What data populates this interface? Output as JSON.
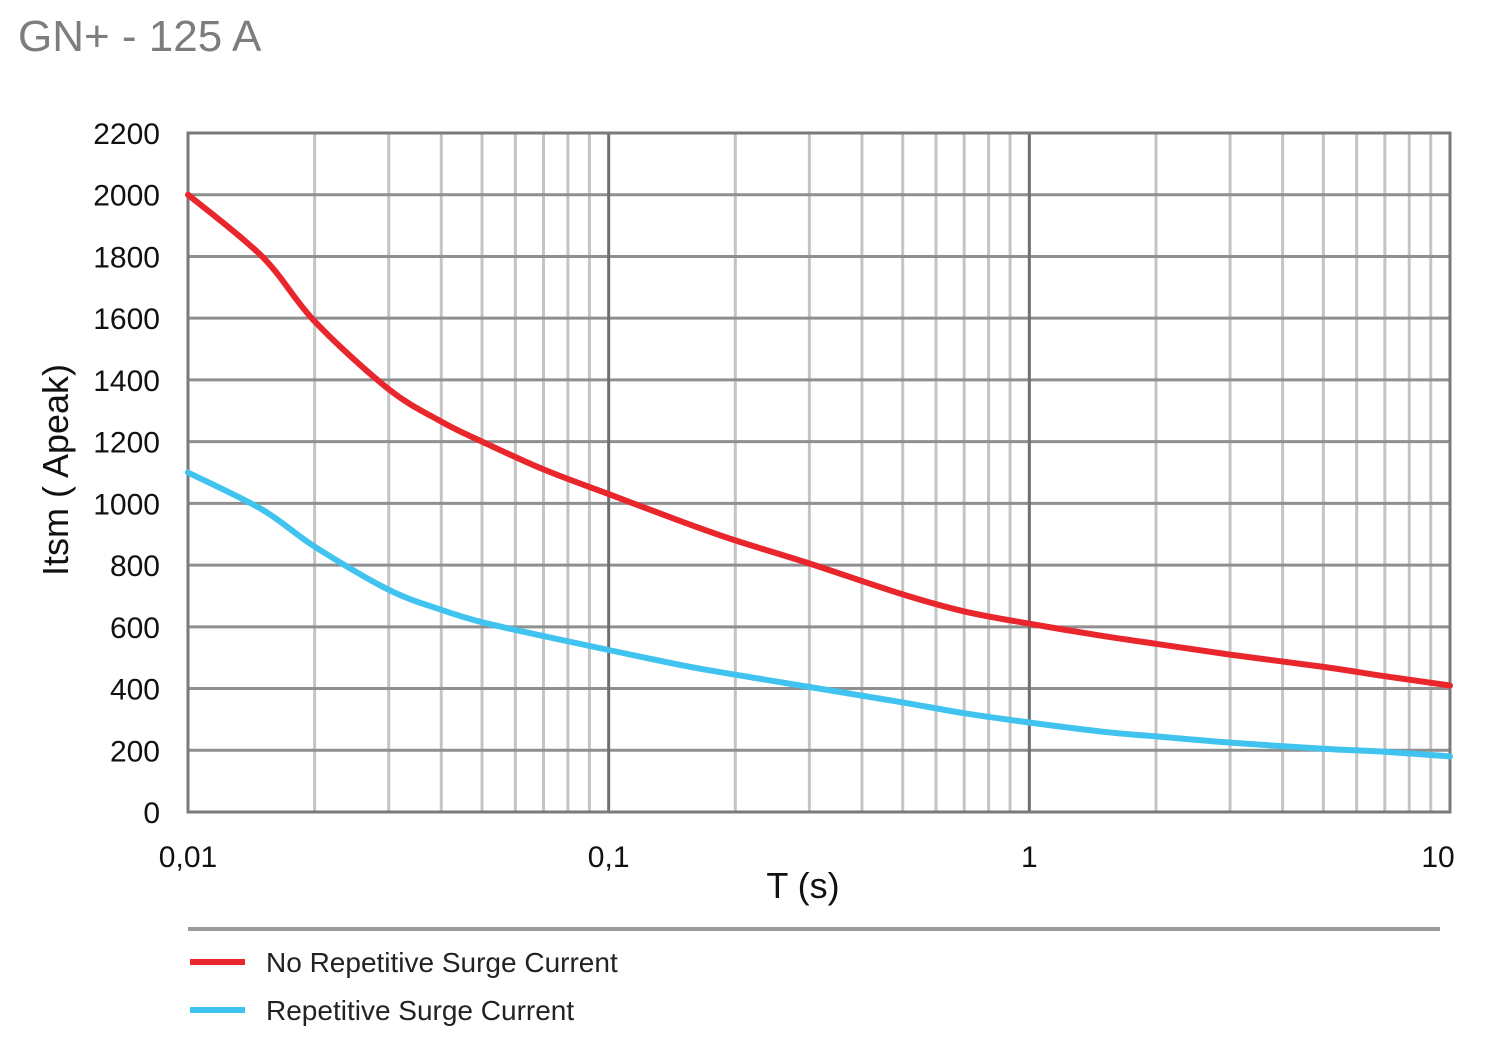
{
  "chart_data": {
    "type": "line",
    "title": "GN+ - 125 A",
    "xlabel": "T (s)",
    "ylabel": "Itsm ( Apeak)",
    "xscale": "log",
    "xlim": [
      0.01,
      10
    ],
    "ylim": [
      0,
      2200
    ],
    "x_ticks": [
      0.01,
      0.1,
      1,
      10
    ],
    "x_tick_labels": [
      "0,01",
      "0,1",
      "1",
      "10"
    ],
    "y_ticks": [
      0,
      200,
      400,
      600,
      800,
      1000,
      1200,
      1400,
      1600,
      1800,
      2000,
      2200
    ],
    "y_tick_labels": [
      "0",
      "200",
      "400",
      "600",
      "800",
      "1000",
      "1200",
      "1400",
      "1600",
      "1800",
      "2000",
      "2200"
    ],
    "grid": true,
    "legend_position": "bottom",
    "series": [
      {
        "name": "No Repetitive Surge Current",
        "color": "#e8262c",
        "x": [
          0.01,
          0.015,
          0.02,
          0.03,
          0.04,
          0.05,
          0.07,
          0.1,
          0.15,
          0.2,
          0.3,
          0.5,
          0.7,
          1,
          1.5,
          2,
          3,
          5,
          7,
          10
        ],
        "y": [
          2000,
          1800,
          1590,
          1370,
          1265,
          1200,
          1110,
          1030,
          940,
          880,
          805,
          705,
          650,
          610,
          570,
          545,
          510,
          470,
          440,
          410
        ]
      },
      {
        "name": "Repetitive Surge Current",
        "color": "#41c3f0",
        "x": [
          0.01,
          0.015,
          0.02,
          0.03,
          0.04,
          0.05,
          0.07,
          0.1,
          0.15,
          0.2,
          0.3,
          0.5,
          0.7,
          1,
          1.5,
          2,
          3,
          5,
          7,
          10
        ],
        "y": [
          1100,
          980,
          860,
          720,
          655,
          615,
          570,
          525,
          475,
          445,
          405,
          355,
          320,
          290,
          260,
          245,
          225,
          205,
          195,
          180
        ]
      }
    ]
  }
}
